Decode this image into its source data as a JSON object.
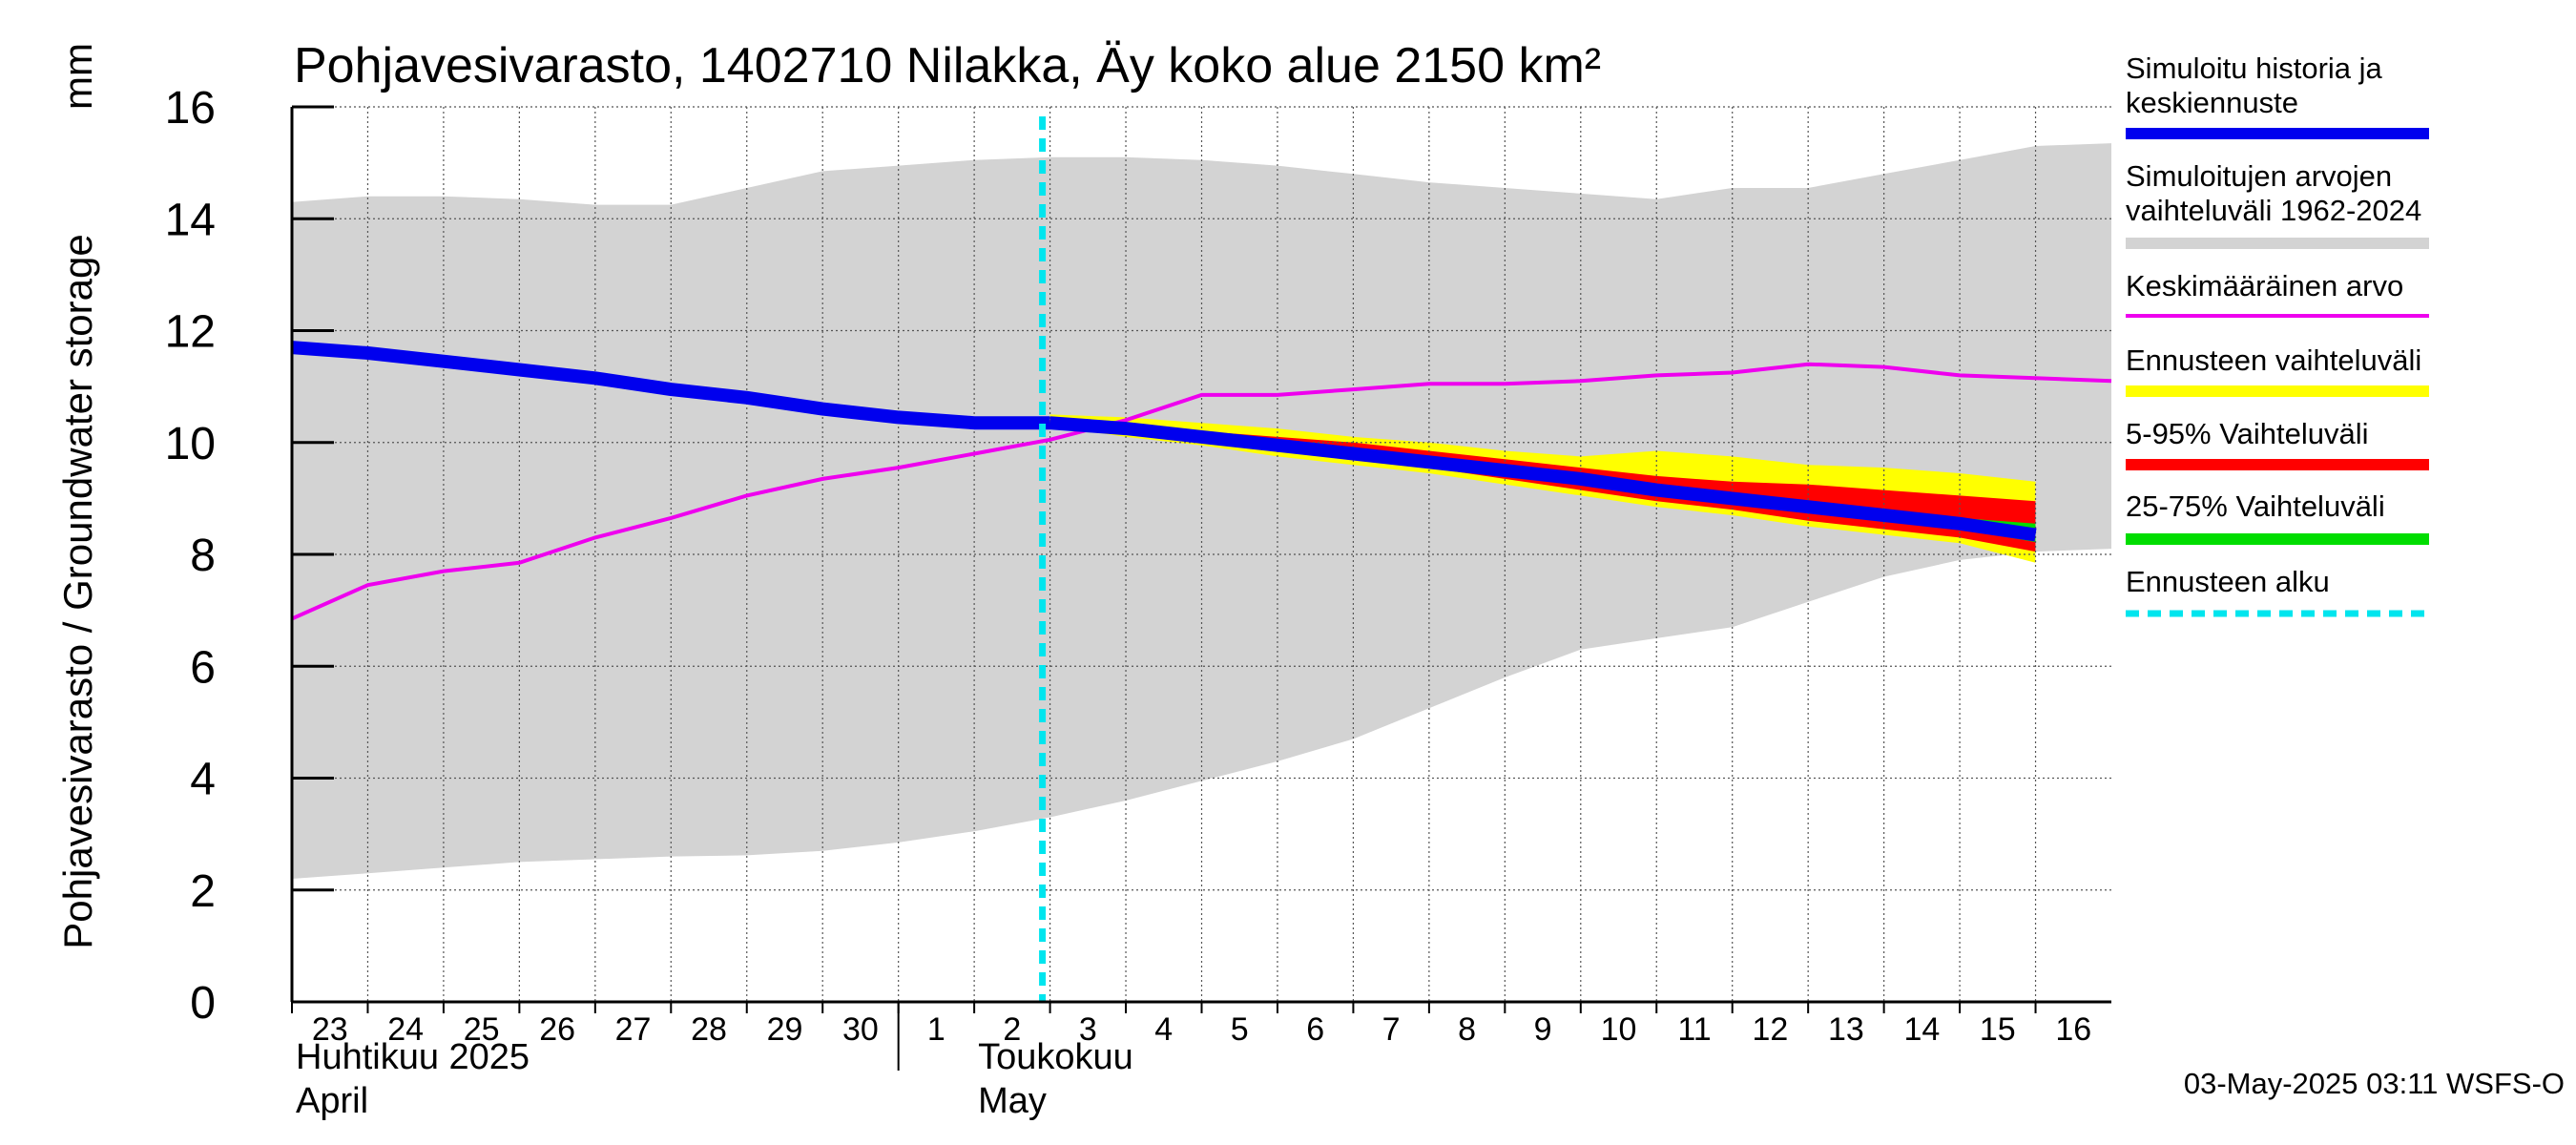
{
  "chart_data": {
    "type": "area",
    "title": "Pohjavesivarasto, 1402710 Nilakka, Äy koko alue 2150 km²",
    "ylabel": "Pohjavesivarasto / Groundwater storage",
    "yunit": "mm",
    "ylim": [
      0,
      16
    ],
    "yticks": [
      0,
      2,
      4,
      6,
      8,
      10,
      12,
      14,
      16
    ],
    "grid": true,
    "legend_position": "right",
    "x_categories": [
      "23",
      "24",
      "25",
      "26",
      "27",
      "28",
      "29",
      "30",
      "1",
      "2",
      "3",
      "4",
      "5",
      "6",
      "7",
      "8",
      "9",
      "10",
      "11",
      "12",
      "13",
      "14",
      "15",
      "16"
    ],
    "month_labels": [
      {
        "line1": "Huhtikuu  2025",
        "line2": "April",
        "at_day": "23"
      },
      {
        "line1": "Toukokuu",
        "line2": "May",
        "at_day": "2"
      }
    ],
    "forecast_start": "3",
    "timestamp": "03-May-2025 03:11 WSFS-O",
    "legend": [
      {
        "label": "Simuloitu historia ja keskiennuste",
        "color": "#0000ee",
        "style": "thick"
      },
      {
        "label": "Simuloitujen arvojen vaihteluväli 1962-2024",
        "color": "#d3d3d3",
        "style": "thick"
      },
      {
        "label": "Keskimääräinen arvo",
        "color": "#ee00ee",
        "style": "thin"
      },
      {
        "label": "Ennusteen vaihteluväli",
        "color": "#ffff00",
        "style": "thick"
      },
      {
        "label": "5-95% Vaihteluväli",
        "color": "#ff0000",
        "style": "thick"
      },
      {
        "label": "25-75% Vaihteluväli",
        "color": "#00dd00",
        "style": "thick"
      },
      {
        "label": "Ennusteen alku",
        "color": "#00e5ee",
        "style": "dashed"
      }
    ],
    "x": [
      0,
      1,
      2,
      3,
      4,
      5,
      6,
      7,
      8,
      9,
      10,
      11,
      12,
      13,
      14,
      15,
      16,
      17,
      18,
      19,
      20,
      21,
      22,
      23,
      24
    ],
    "series": {
      "range_max": [
        14.3,
        14.4,
        14.4,
        14.35,
        14.25,
        14.25,
        14.55,
        14.85,
        14.95,
        15.05,
        15.1,
        15.1,
        15.05,
        14.95,
        14.8,
        14.65,
        14.55,
        14.45,
        14.35,
        14.55,
        14.55,
        14.8,
        15.05,
        15.3,
        15.35
      ],
      "range_min": [
        2.2,
        2.3,
        2.4,
        2.5,
        2.55,
        2.6,
        2.62,
        2.7,
        2.85,
        3.05,
        3.3,
        3.6,
        3.95,
        4.3,
        4.7,
        5.25,
        5.8,
        6.3,
        6.5,
        6.7,
        7.15,
        7.6,
        7.9,
        8.05,
        8.1
      ],
      "mean": [
        6.85,
        7.45,
        7.7,
        7.85,
        8.3,
        8.65,
        9.05,
        9.35,
        9.55,
        9.8,
        10.05,
        10.4,
        10.85,
        10.85,
        10.95,
        11.05,
        11.05,
        11.1,
        11.2,
        11.25,
        11.4,
        11.35,
        11.2,
        11.15,
        11.1
      ],
      "history": [
        11.7,
        11.6,
        11.45,
        11.3,
        11.15,
        10.95,
        10.8,
        10.6,
        10.45,
        10.35,
        10.35
      ],
      "forecast_median": [
        10.35,
        10.25,
        10.1,
        9.95,
        9.8,
        9.65,
        9.5,
        9.35,
        9.15,
        9.0,
        8.85,
        8.7,
        8.55,
        8.35
      ],
      "fc_range_max": [
        10.5,
        10.45,
        10.35,
        10.25,
        10.1,
        10.0,
        9.85,
        9.75,
        9.85,
        9.75,
        9.6,
        9.55,
        9.45,
        9.3
      ],
      "fc_range_min": [
        10.3,
        10.1,
        9.95,
        9.75,
        9.6,
        9.45,
        9.25,
        9.05,
        8.85,
        8.7,
        8.5,
        8.35,
        8.2,
        7.85
      ],
      "p95": [
        10.4,
        10.3,
        10.2,
        10.1,
        10.0,
        9.85,
        9.7,
        9.55,
        9.4,
        9.3,
        9.25,
        9.15,
        9.05,
        8.95
      ],
      "p5": [
        10.3,
        10.15,
        10.0,
        9.85,
        9.7,
        9.55,
        9.35,
        9.15,
        8.95,
        8.8,
        8.6,
        8.45,
        8.3,
        8.05
      ],
      "p75": [
        10.38,
        10.28,
        10.13,
        9.98,
        9.83,
        9.7,
        9.55,
        9.4,
        9.2,
        9.05,
        8.9,
        8.78,
        8.65,
        8.55
      ],
      "p25": [
        10.32,
        10.2,
        10.06,
        9.9,
        9.76,
        9.6,
        9.44,
        9.28,
        9.08,
        8.93,
        8.78,
        8.6,
        8.45,
        8.22
      ]
    }
  }
}
